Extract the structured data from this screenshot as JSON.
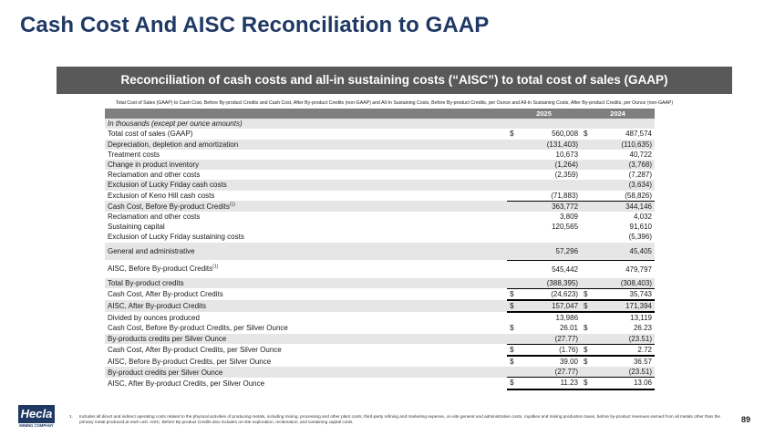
{
  "page": {
    "title": "Cash Cost And AISC Reconciliation to GAAP",
    "banner": "Reconciliation of cash costs and all-in sustaining costs (“AISC”) to total cost of sales (GAAP)",
    "subtitle": "Total Cost of Sales (GAAP) to Cash Cost, Before By-product Credits and Cash Cost, After By-product Credits (non-GAAP) and All-In Sustaining Costs, Before By-product Credits, per Ounce and All-In Sustaining Costs, After By-product Credits, per Ounce (non-GAAP)",
    "page_number": "89"
  },
  "table": {
    "headers": [
      "",
      "2025",
      "2024"
    ],
    "rows": [
      {
        "label": "In thousands (except per ounce amounts)",
        "c1": "",
        "v1": "",
        "c2": "",
        "v2": ""
      },
      {
        "label": "Total cost of sales (GAAP)",
        "c1": "$",
        "v1": "560,008",
        "c2": "$",
        "v2": "487,574"
      },
      {
        "label": "Depreciation, depletion and amortization",
        "c1": "",
        "v1": "(131,403)",
        "c2": "",
        "v2": "(110,635)"
      },
      {
        "label": "Treatment costs",
        "c1": "",
        "v1": "10,673",
        "c2": "",
        "v2": "40,722"
      },
      {
        "label": "Change in product inventory",
        "c1": "",
        "v1": "(1,264)",
        "c2": "",
        "v2": "(3,768)"
      },
      {
        "label": "Reclamation and other costs",
        "c1": "",
        "v1": "(2,359)",
        "c2": "",
        "v2": "(7,287)"
      },
      {
        "label": "Exclusion of Lucky Friday cash costs",
        "c1": "",
        "v1": "",
        "c2": "",
        "v2": "(3,634)"
      },
      {
        "label": "Exclusion of Keno Hill cash costs",
        "c1": "",
        "v1": "(71,883)",
        "c2": "",
        "v2": "(58,826)"
      },
      {
        "label": "Cash Cost, Before By-product Credits",
        "sup": "(1)",
        "c1": "",
        "v1": "363,772",
        "c2": "",
        "v2": "344,146"
      },
      {
        "label": "Reclamation and other costs",
        "c1": "",
        "v1": "3,809",
        "c2": "",
        "v2": "4,032"
      },
      {
        "label": "Sustaining capital",
        "c1": "",
        "v1": "120,565",
        "c2": "",
        "v2": "91,610"
      },
      {
        "label": "Exclusion of Lucky Friday sustaining costs",
        "c1": "",
        "v1": "",
        "c2": "",
        "v2": "(5,396)"
      },
      {
        "label": "General and administrative",
        "c1": "",
        "v1": "57,296",
        "c2": "",
        "v2": "45,405"
      },
      {
        "label": "AISC, Before By-product Credits",
        "sup": "(1)",
        "c1": "",
        "v1": "545,442",
        "c2": "",
        "v2": "479,797"
      },
      {
        "label": "Total By-product credits",
        "c1": "",
        "v1": "(388,395)",
        "c2": "",
        "v2": "(308,403)"
      },
      {
        "label": "Cash Cost, After By-product Credits",
        "c1": "$",
        "v1": "(24,623)",
        "c2": "$",
        "v2": "35,743"
      },
      {
        "label": "AISC, After By-product Credits",
        "c1": "$",
        "v1": "157,047",
        "c2": "$",
        "v2": "171,394"
      },
      {
        "label": "Divided by ounces produced",
        "c1": "",
        "v1": "13,986",
        "c2": "",
        "v2": "13,119"
      },
      {
        "label": "Cash Cost, Before By-product Credits, per Silver Ounce",
        "c1": "$",
        "v1": "26.01",
        "c2": "$",
        "v2": "26.23"
      },
      {
        "label": "By-products credits per Silver Ounce",
        "c1": "",
        "v1": "(27.77)",
        "c2": "",
        "v2": "(23.51)"
      },
      {
        "label": "Cash Cost, After By-product Credits, per Silver Ounce",
        "c1": "$",
        "v1": "(1.76)",
        "c2": "$",
        "v2": "2.72"
      },
      {
        "label": "AISC, Before By-product Credits, per Silver Ounce",
        "c1": "$",
        "v1": "39.00",
        "c2": "$",
        "v2": "36.57"
      },
      {
        "label": "By-product credits per Silver Ounce",
        "c1": "",
        "v1": "(27.77)",
        "c2": "",
        "v2": "(23.51)"
      },
      {
        "label": "AISC, After By-product Credits, per Silver Ounce",
        "c1": "$",
        "v1": "11.23",
        "c2": "$",
        "v2": "13.06"
      }
    ]
  },
  "footnote": {
    "number": "1.",
    "text": "Includes all direct and indirect operating costs related to the physical activities of producing metals, including mining, processing and other plant costs, third-party refining and marketing expense, on-site general and administrative costs, royalties and mining production taxes, before by-product revenues earned from all metals other than the primary metal produced at each unit. AISC, Before By-product Credits also includes on-site exploration, reclamation, and sustaining capital costs."
  },
  "logo": {
    "name": "Hecla",
    "tagline": "MINING COMPANY"
  }
}
